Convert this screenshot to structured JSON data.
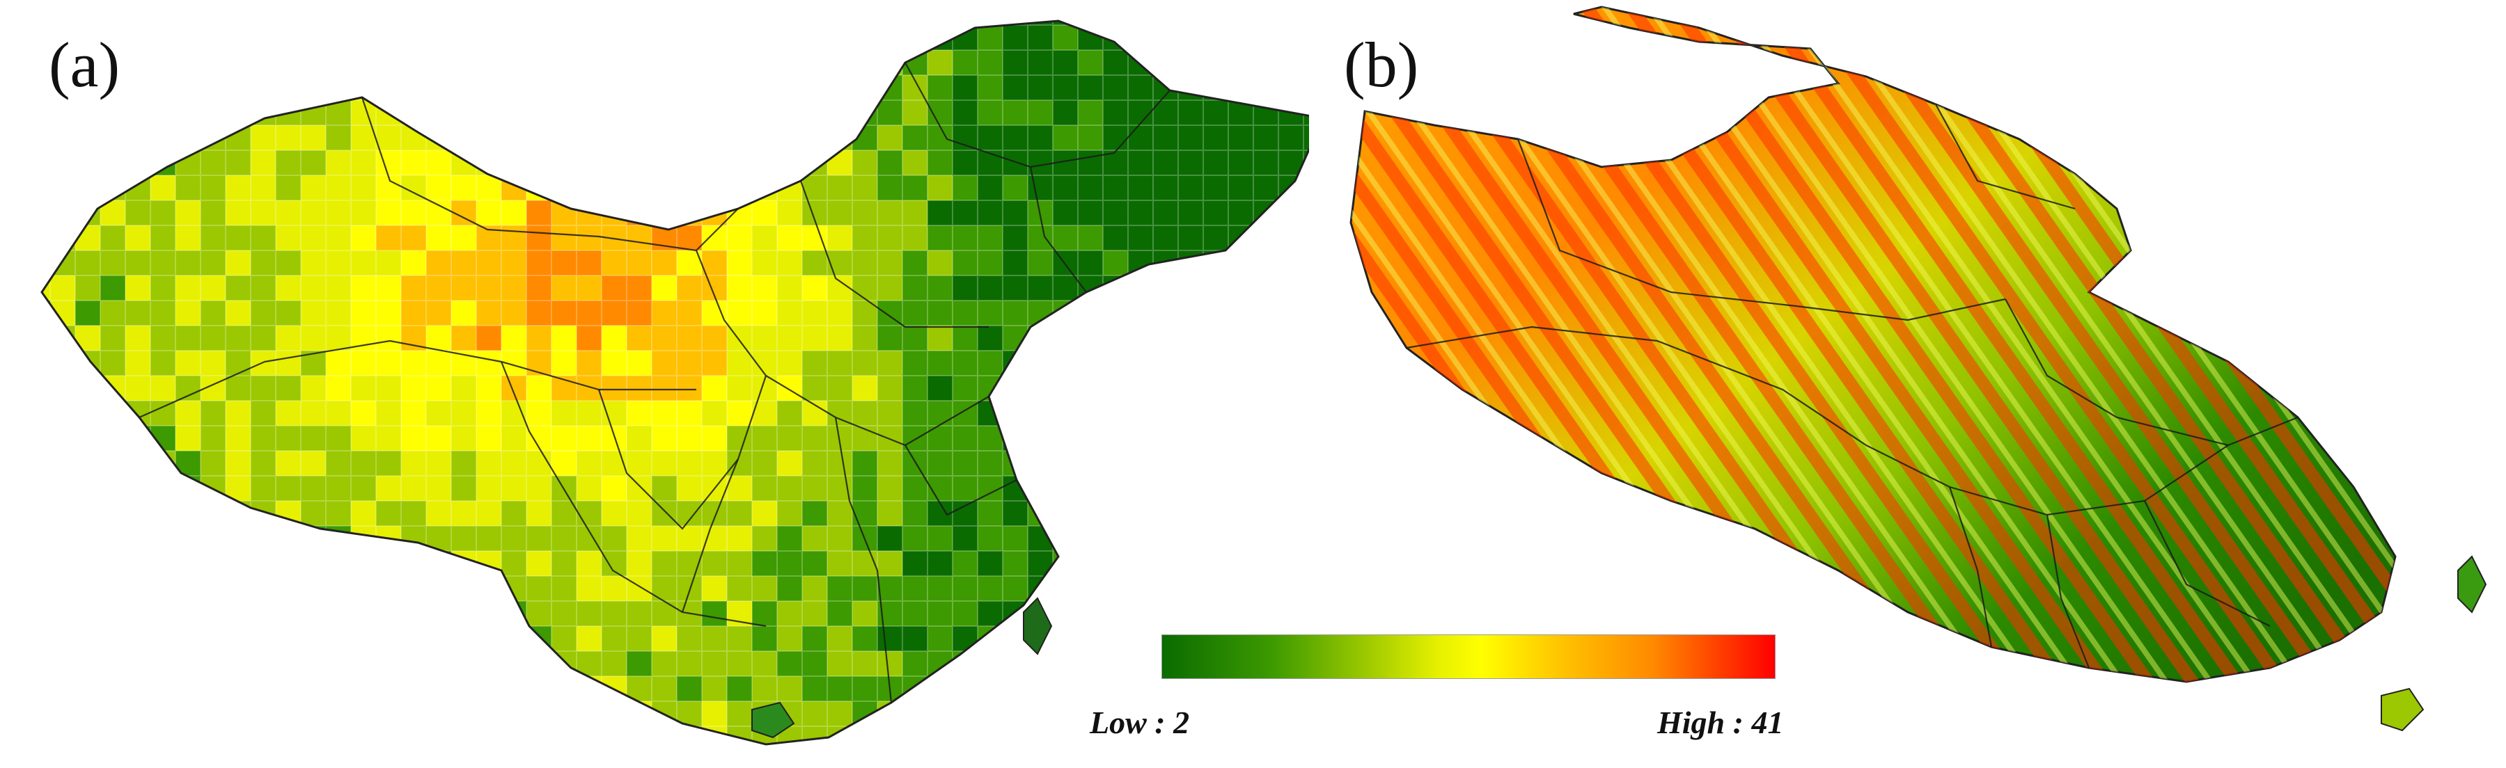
{
  "panels": {
    "a": {
      "label": "(a)"
    },
    "b": {
      "label": "(b)"
    }
  },
  "legend": {
    "low_label": "Low : 2",
    "high_label": "High : 41",
    "colors": [
      "#0a6b00",
      "#3d9a00",
      "#9bc800",
      "#e6f000",
      "#ffff00",
      "#ffc000",
      "#ff8a00",
      "#ff0000"
    ]
  }
}
